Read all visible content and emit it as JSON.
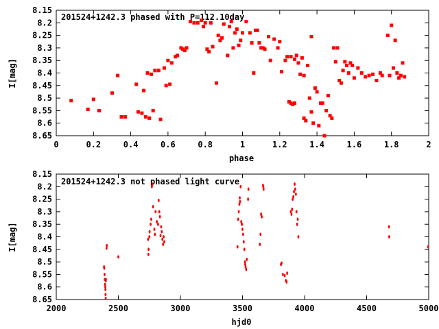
{
  "chart_data": [
    {
      "type": "scatter",
      "title": "201524+1242.3 phased with P=112.10day",
      "xlabel": "phase",
      "ylabel": "I[mag]",
      "xlim": [
        0,
        2
      ],
      "ylim": [
        8.15,
        8.65
      ],
      "y_inverted": true,
      "grid": false,
      "marker_color": "#ff0000",
      "marker_size": "large",
      "xticks": [
        "0",
        "0.2",
        "0.4",
        "0.6",
        "0.8",
        "1",
        "1.2",
        "1.4",
        "1.6",
        "1.8",
        "2"
      ],
      "yticks": [
        "8.15",
        "8.2",
        "8.25",
        "8.3",
        "8.35",
        "8.4",
        "8.45",
        "8.5",
        "8.55",
        "8.6",
        "8.65"
      ],
      "points": [
        [
          0.08,
          8.51
        ],
        [
          0.17,
          8.545
        ],
        [
          0.2,
          8.505
        ],
        [
          0.23,
          8.55
        ],
        [
          0.3,
          8.48
        ],
        [
          0.33,
          8.41
        ],
        [
          0.35,
          8.575
        ],
        [
          0.37,
          8.575
        ],
        [
          0.43,
          8.445
        ],
        [
          0.44,
          8.555
        ],
        [
          0.46,
          8.56
        ],
        [
          0.47,
          8.47
        ],
        [
          0.48,
          8.575
        ],
        [
          0.49,
          8.4
        ],
        [
          0.5,
          8.58
        ],
        [
          0.51,
          8.405
        ],
        [
          0.52,
          8.55
        ],
        [
          0.53,
          8.39
        ],
        [
          0.55,
          8.39
        ],
        [
          0.56,
          8.585
        ],
        [
          0.58,
          8.38
        ],
        [
          0.59,
          8.45
        ],
        [
          0.6,
          8.35
        ],
        [
          0.61,
          8.445
        ],
        [
          0.62,
          8.36
        ],
        [
          0.64,
          8.335
        ],
        [
          0.65,
          8.33
        ],
        [
          0.67,
          8.3
        ],
        [
          0.68,
          8.305
        ],
        [
          0.69,
          8.31
        ],
        [
          0.7,
          8.3
        ],
        [
          0.72,
          8.195
        ],
        [
          0.74,
          8.2
        ],
        [
          0.76,
          8.2
        ],
        [
          0.78,
          8.19
        ],
        [
          0.79,
          8.215
        ],
        [
          0.8,
          8.2
        ],
        [
          0.81,
          8.305
        ],
        [
          0.82,
          8.315
        ],
        [
          0.83,
          8.2
        ],
        [
          0.84,
          8.295
        ],
        [
          0.86,
          8.44
        ],
        [
          0.87,
          8.25
        ],
        [
          0.88,
          8.27
        ],
        [
          0.89,
          8.26
        ],
        [
          0.9,
          8.205
        ],
        [
          0.92,
          8.33
        ],
        [
          0.93,
          8.215
        ],
        [
          0.94,
          8.195
        ],
        [
          0.95,
          8.3
        ],
        [
          0.96,
          8.24
        ],
        [
          0.97,
          8.225
        ],
        [
          0.98,
          8.29
        ],
        [
          0.99,
          8.27
        ],
        [
          1.0,
          8.24
        ],
        [
          1.02,
          8.195
        ],
        [
          1.04,
          8.24
        ],
        [
          1.05,
          8.28
        ],
        [
          1.06,
          8.4
        ],
        [
          1.07,
          8.23
        ],
        [
          1.08,
          8.23
        ],
        [
          1.09,
          8.28
        ],
        [
          1.1,
          8.3
        ],
        [
          1.11,
          8.3
        ],
        [
          1.12,
          8.305
        ],
        [
          1.14,
          8.255
        ],
        [
          1.15,
          8.35
        ],
        [
          1.17,
          8.265
        ],
        [
          1.19,
          8.3
        ],
        [
          1.2,
          8.275
        ],
        [
          1.21,
          8.395
        ],
        [
          1.23,
          8.35
        ],
        [
          1.24,
          8.335
        ],
        [
          1.25,
          8.515
        ],
        [
          1.26,
          8.52
        ],
        [
          1.26,
          8.335
        ],
        [
          1.27,
          8.525
        ],
        [
          1.28,
          8.345
        ],
        [
          1.28,
          8.52
        ],
        [
          1.29,
          8.33
        ],
        [
          1.3,
          8.36
        ],
        [
          1.31,
          8.405
        ],
        [
          1.32,
          8.34
        ],
        [
          1.33,
          8.58
        ],
        [
          1.33,
          8.41
        ],
        [
          1.34,
          8.59
        ],
        [
          1.35,
          8.37
        ],
        [
          1.36,
          8.5
        ],
        [
          1.37,
          8.255
        ],
        [
          1.37,
          8.555
        ],
        [
          1.38,
          8.6
        ],
        [
          1.39,
          8.46
        ],
        [
          1.4,
          8.475
        ],
        [
          1.41,
          8.61
        ],
        [
          1.42,
          8.52
        ],
        [
          1.43,
          8.52
        ],
        [
          1.44,
          8.65
        ],
        [
          1.45,
          8.55
        ],
        [
          1.46,
          8.49
        ],
        [
          1.47,
          8.57
        ],
        [
          1.48,
          8.58
        ],
        [
          1.49,
          8.3
        ],
        [
          1.5,
          8.355
        ],
        [
          1.51,
          8.3
        ],
        [
          1.52,
          8.43
        ],
        [
          1.53,
          8.44
        ],
        [
          1.54,
          8.39
        ],
        [
          1.55,
          8.355
        ],
        [
          1.56,
          8.37
        ],
        [
          1.57,
          8.4
        ],
        [
          1.58,
          8.36
        ],
        [
          1.59,
          8.37
        ],
        [
          1.6,
          8.42
        ],
        [
          1.62,
          8.38
        ],
        [
          1.64,
          8.4
        ],
        [
          1.66,
          8.415
        ],
        [
          1.68,
          8.41
        ],
        [
          1.7,
          8.405
        ],
        [
          1.72,
          8.43
        ],
        [
          1.74,
          8.4
        ],
        [
          1.75,
          8.41
        ],
        [
          1.78,
          8.25
        ],
        [
          1.79,
          8.41
        ],
        [
          1.8,
          8.21
        ],
        [
          1.81,
          8.38
        ],
        [
          1.82,
          8.27
        ],
        [
          1.83,
          8.4
        ],
        [
          1.84,
          8.42
        ],
        [
          1.85,
          8.41
        ],
        [
          1.86,
          8.36
        ],
        [
          1.87,
          8.415
        ]
      ]
    },
    {
      "type": "scatter",
      "title": "201524+1242.3 not phased light curve",
      "xlabel": "hjd0",
      "ylabel": "I[mag]",
      "xlim": [
        2000,
        5000
      ],
      "ylim": [
        8.15,
        8.65
      ],
      "y_inverted": true,
      "grid": false,
      "marker_color": "#ff0000",
      "marker_size": "small",
      "xticks": [
        "2000",
        "2500",
        "3000",
        "3500",
        "4000",
        "4500",
        "5000"
      ],
      "yticks": [
        "8.15",
        "8.2",
        "8.25",
        "8.3",
        "8.35",
        "8.4",
        "8.45",
        "8.5",
        "8.55",
        "8.6",
        "8.65"
      ],
      "points": [
        [
          2385,
          8.52
        ],
        [
          2387,
          8.525
        ],
        [
          2389,
          8.55
        ],
        [
          2391,
          8.57
        ],
        [
          2393,
          8.59
        ],
        [
          2395,
          8.6
        ],
        [
          2396,
          8.61
        ],
        [
          2397,
          8.63
        ],
        [
          2398,
          8.645
        ],
        [
          2399,
          8.575
        ],
        [
          2400,
          8.57
        ],
        [
          2405,
          8.445
        ],
        [
          2407,
          8.435
        ],
        [
          2500,
          8.48
        ],
        [
          2740,
          8.41
        ],
        [
          2742,
          8.47
        ],
        [
          2744,
          8.45
        ],
        [
          2750,
          8.4
        ],
        [
          2752,
          8.38
        ],
        [
          2760,
          8.35
        ],
        [
          2765,
          8.33
        ],
        [
          2770,
          8.2
        ],
        [
          2775,
          8.19
        ],
        [
          2780,
          8.28
        ],
        [
          2790,
          8.37
        ],
        [
          2795,
          8.39
        ],
        [
          2800,
          8.3
        ],
        [
          2810,
          8.34
        ],
        [
          2820,
          8.35
        ],
        [
          2825,
          8.255
        ],
        [
          2830,
          8.3
        ],
        [
          2835,
          8.32
        ],
        [
          2840,
          8.395
        ],
        [
          2845,
          8.36
        ],
        [
          2850,
          8.38
        ],
        [
          2855,
          8.41
        ],
        [
          2860,
          8.43
        ],
        [
          2865,
          8.4
        ],
        [
          2870,
          8.42
        ],
        [
          3460,
          8.44
        ],
        [
          3465,
          8.33
        ],
        [
          3470,
          8.3
        ],
        [
          3475,
          8.27
        ],
        [
          3478,
          8.245
        ],
        [
          3480,
          8.26
        ],
        [
          3485,
          8.2
        ],
        [
          3490,
          8.34
        ],
        [
          3495,
          8.35
        ],
        [
          3500,
          8.37
        ],
        [
          3505,
          8.39
        ],
        [
          3510,
          8.42
        ],
        [
          3515,
          8.45
        ],
        [
          3520,
          8.5
        ],
        [
          3522,
          8.51
        ],
        [
          3525,
          8.52
        ],
        [
          3530,
          8.53
        ],
        [
          3535,
          8.49
        ],
        [
          3545,
          8.25
        ],
        [
          3548,
          8.21
        ],
        [
          3640,
          8.43
        ],
        [
          3645,
          8.39
        ],
        [
          3650,
          8.31
        ],
        [
          3655,
          8.32
        ],
        [
          3665,
          8.195
        ],
        [
          3668,
          8.2
        ],
        [
          3670,
          8.21
        ],
        [
          3810,
          8.51
        ],
        [
          3815,
          8.505
        ],
        [
          3825,
          8.55
        ],
        [
          3840,
          8.555
        ],
        [
          3850,
          8.575
        ],
        [
          3855,
          8.58
        ],
        [
          3860,
          8.545
        ],
        [
          3890,
          8.3
        ],
        [
          3895,
          8.31
        ],
        [
          3900,
          8.29
        ],
        [
          3905,
          8.25
        ],
        [
          3910,
          8.24
        ],
        [
          3915,
          8.22
        ],
        [
          3920,
          8.19
        ],
        [
          3925,
          8.21
        ],
        [
          3930,
          8.23
        ],
        [
          3935,
          8.3
        ],
        [
          3940,
          8.35
        ],
        [
          3945,
          8.33
        ],
        [
          3950,
          8.4
        ],
        [
          4680,
          8.36
        ],
        [
          4682,
          8.4
        ],
        [
          4995,
          8.44
        ]
      ]
    }
  ]
}
